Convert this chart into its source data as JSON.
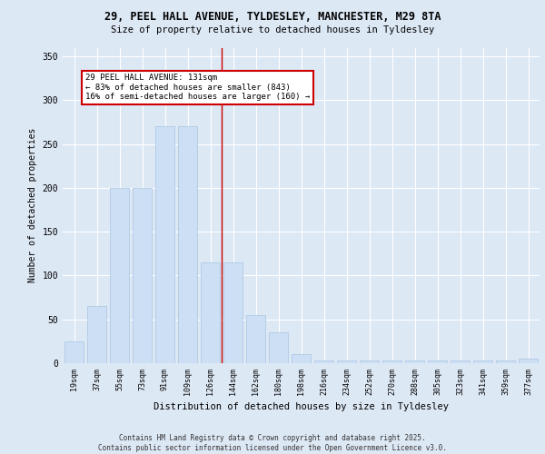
{
  "title_line1": "29, PEEL HALL AVENUE, TYLDESLEY, MANCHESTER, M29 8TA",
  "title_line2": "Size of property relative to detached houses in Tyldesley",
  "xlabel": "Distribution of detached houses by size in Tyldesley",
  "ylabel": "Number of detached properties",
  "bar_labels": [
    "19sqm",
    "37sqm",
    "55sqm",
    "73sqm",
    "91sqm",
    "109sqm",
    "126sqm",
    "144sqm",
    "162sqm",
    "180sqm",
    "198sqm",
    "216sqm",
    "234sqm",
    "252sqm",
    "270sqm",
    "288sqm",
    "305sqm",
    "323sqm",
    "341sqm",
    "359sqm",
    "377sqm"
  ],
  "bar_values": [
    25,
    65,
    200,
    200,
    270,
    270,
    115,
    115,
    55,
    35,
    10,
    3,
    3,
    3,
    3,
    3,
    3,
    3,
    3,
    3,
    5
  ],
  "bar_color": "#ccdff5",
  "bar_edge_color": "#aac4e0",
  "annotation_text": "29 PEEL HALL AVENUE: 131sqm\n← 83% of detached houses are smaller (843)\n16% of semi-detached houses are larger (160) →",
  "annotation_box_color": "#ffffff",
  "annotation_box_edge_color": "#cc0000",
  "vline_color": "#cc0000",
  "ylim": [
    0,
    360
  ],
  "yticks": [
    0,
    50,
    100,
    150,
    200,
    250,
    300,
    350
  ],
  "footnote": "Contains HM Land Registry data © Crown copyright and database right 2025.\nContains public sector information licensed under the Open Government Licence v3.0.",
  "bg_color": "#dde8f5",
  "plot_bg_color": "#dde8f5",
  "vline_x_index": 6.5
}
